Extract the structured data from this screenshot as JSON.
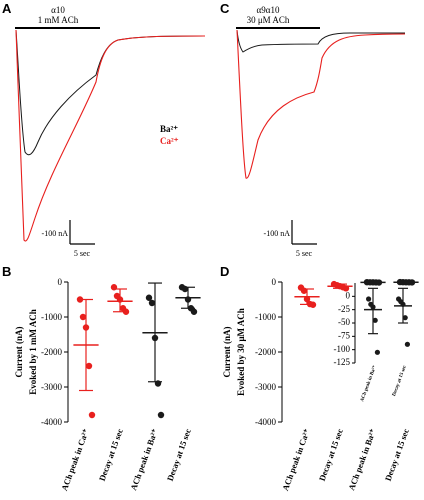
{
  "colors": {
    "ba": "#1a1a1a",
    "ca": "#e8201e"
  },
  "panels": {
    "A": {
      "letter": "A",
      "line1": "α10",
      "line2": "1 mM ACh",
      "legend_ba": "Ba²⁺",
      "legend_ca": "Ca²⁺",
      "scale_y": "100 nA",
      "scale_x": "5 sec"
    },
    "C": {
      "letter": "C",
      "line1": "α9α10",
      "line2": "30 μM ACh",
      "scale_y": "100 nA",
      "scale_x": "5 sec"
    },
    "B": {
      "letter": "B"
    },
    "D": {
      "letter": "D"
    }
  },
  "chart_data": [
    {
      "type": "scatter",
      "panel": "B",
      "ylabel_line1": "Current (nA)",
      "ylabel_line2": "Evoked by 1 mM ACh",
      "ylim": [
        -4000,
        0
      ],
      "yticks": [
        0,
        -1000,
        -2000,
        -3000,
        -4000
      ],
      "ytick_labels": [
        "0",
        "-1000",
        "-2000",
        "-3000",
        "-4000"
      ],
      "categories": [
        "ACh peak in Ca²⁺",
        "Decay at 15 sec",
        "ACh peak in Ba²⁺",
        "Decay at 15 sec"
      ],
      "groups": [
        {
          "color": "ca",
          "points": [
            -500,
            -1000,
            -1300,
            -2400,
            -3800
          ],
          "mean": -1800,
          "sd_low": -3100,
          "sd_high": -500
        },
        {
          "color": "ca",
          "points": [
            -150,
            -400,
            -500,
            -750,
            -850
          ],
          "mean": -550,
          "sd_low": -850,
          "sd_high": -200
        },
        {
          "color": "ba",
          "points": [
            -450,
            -600,
            -1600,
            -2900,
            -3800
          ],
          "mean": -1450,
          "sd_low": -2850,
          "sd_high": -30
        },
        {
          "color": "ba",
          "points": [
            -150,
            -200,
            -500,
            -750,
            -850
          ],
          "mean": -450,
          "sd_low": -750,
          "sd_high": -150
        }
      ]
    },
    {
      "type": "scatter",
      "panel": "D",
      "ylabel_line1": "Current (nA)",
      "ylabel_line2": "Evoked by 30 μM ACh",
      "ylim": [
        -4000,
        0
      ],
      "yticks": [
        0,
        -1000,
        -2000,
        -3000,
        -4000
      ],
      "ytick_labels": [
        "0",
        "-1000",
        "-2000",
        "-3000",
        "-4000"
      ],
      "categories": [
        "ACh peak in Ca²⁺",
        "Decay at 15 sec",
        "ACh peak in Ba²⁺",
        "Decay at 15 sec"
      ],
      "groups": [
        {
          "color": "ca",
          "points": [
            -160,
            -250,
            -490,
            -630,
            -650
          ],
          "mean": -420,
          "sd_low": -640,
          "sd_high": -200
        },
        {
          "color": "ca",
          "points": [
            -60,
            -90,
            -120,
            -150,
            -180
          ],
          "mean": -120,
          "sd_low": -180,
          "sd_high": -60
        },
        {
          "color": "ba",
          "points": [
            -5,
            -8,
            -10,
            -12,
            -15
          ],
          "mean": -10,
          "sd_low": -15,
          "sd_high": -5
        },
        {
          "color": "ba",
          "points": [
            -3,
            -5,
            -8,
            -10,
            -12
          ],
          "mean": -8,
          "sd_low": -12,
          "sd_high": -3
        }
      ]
    },
    {
      "type": "scatter",
      "panel": "D-inset",
      "ylim": [
        -125,
        25
      ],
      "yticks": [
        0,
        -25,
        -50,
        -75,
        -100,
        -125
      ],
      "ytick_labels": [
        "0",
        "-25",
        "-50",
        "-75",
        "-100",
        "-125"
      ],
      "categories": [
        "ACh peak in Ba²⁺",
        "Decay at 15 sec"
      ],
      "groups": [
        {
          "color": "ba",
          "points": [
            -5,
            -15,
            -20,
            -45,
            -105
          ],
          "mean": -25,
          "sd_low": -70,
          "sd_high": 15
        },
        {
          "color": "ba",
          "points": [
            -5,
            -10,
            -15,
            -40,
            -90
          ],
          "mean": -18,
          "sd_low": -50,
          "sd_high": 15
        }
      ]
    }
  ]
}
